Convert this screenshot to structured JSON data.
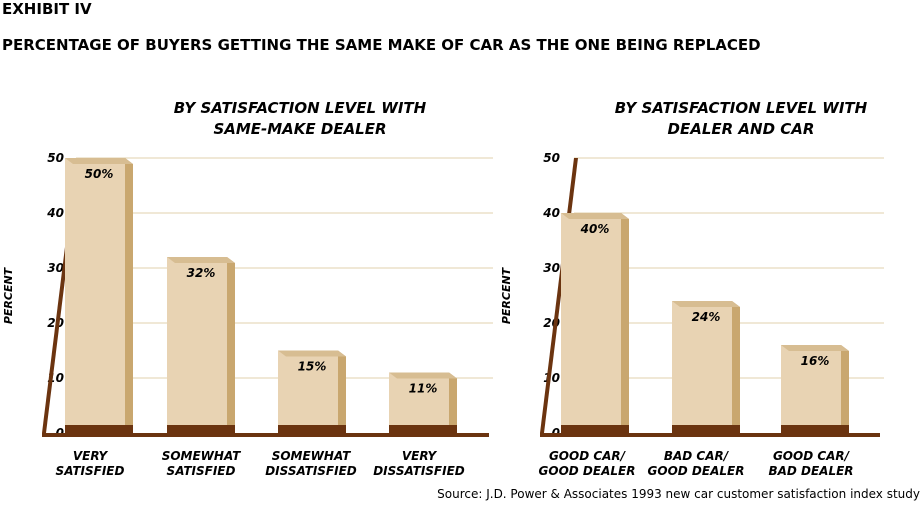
{
  "exhibit_label": "EXHIBIT IV",
  "title": "PERCENTAGE OF BUYERS GETTING THE SAME MAKE OF CAR AS THE ONE BEING REPLACED",
  "source": "Source: J.D. Power & Associates 1993 new car customer satisfaction index study",
  "colors": {
    "bar_front": "#e8d3b3",
    "bar_side": "#c9a76f",
    "axis": "#6b3410",
    "grid": "#e0d2ad"
  },
  "chart_data": [
    {
      "type": "bar",
      "title_lines": [
        "BY SATISFACTION LEVEL WITH",
        "SAME-MAKE DEALER"
      ],
      "ylabel": "PERCENT",
      "ylim": [
        0,
        50
      ],
      "yticks": [
        "0",
        "10",
        "20",
        "30",
        "40",
        "50"
      ],
      "categories": [
        [
          "VERY",
          "SATISFIED"
        ],
        [
          "SOMEWHAT",
          "SATISFIED"
        ],
        [
          "SOMEWHAT",
          "DISSATISFIED"
        ],
        [
          "VERY",
          "DISSATISFIED"
        ]
      ],
      "values": [
        50,
        32,
        15,
        11
      ],
      "value_labels": [
        "50%",
        "32%",
        "15%",
        "11%"
      ]
    },
    {
      "type": "bar",
      "title_lines": [
        "BY SATISFACTION LEVEL WITH",
        "DEALER AND CAR"
      ],
      "ylabel": "PERCENT",
      "ylim": [
        0,
        50
      ],
      "yticks": [
        "0",
        "10",
        "20",
        "30",
        "40",
        "50"
      ],
      "categories": [
        [
          "GOOD CAR/",
          "GOOD DEALER"
        ],
        [
          "BAD CAR/",
          "GOOD DEALER"
        ],
        [
          "GOOD CAR/",
          "BAD DEALER"
        ]
      ],
      "values": [
        40,
        24,
        16
      ],
      "value_labels": [
        "40%",
        "24%",
        "16%"
      ]
    }
  ]
}
